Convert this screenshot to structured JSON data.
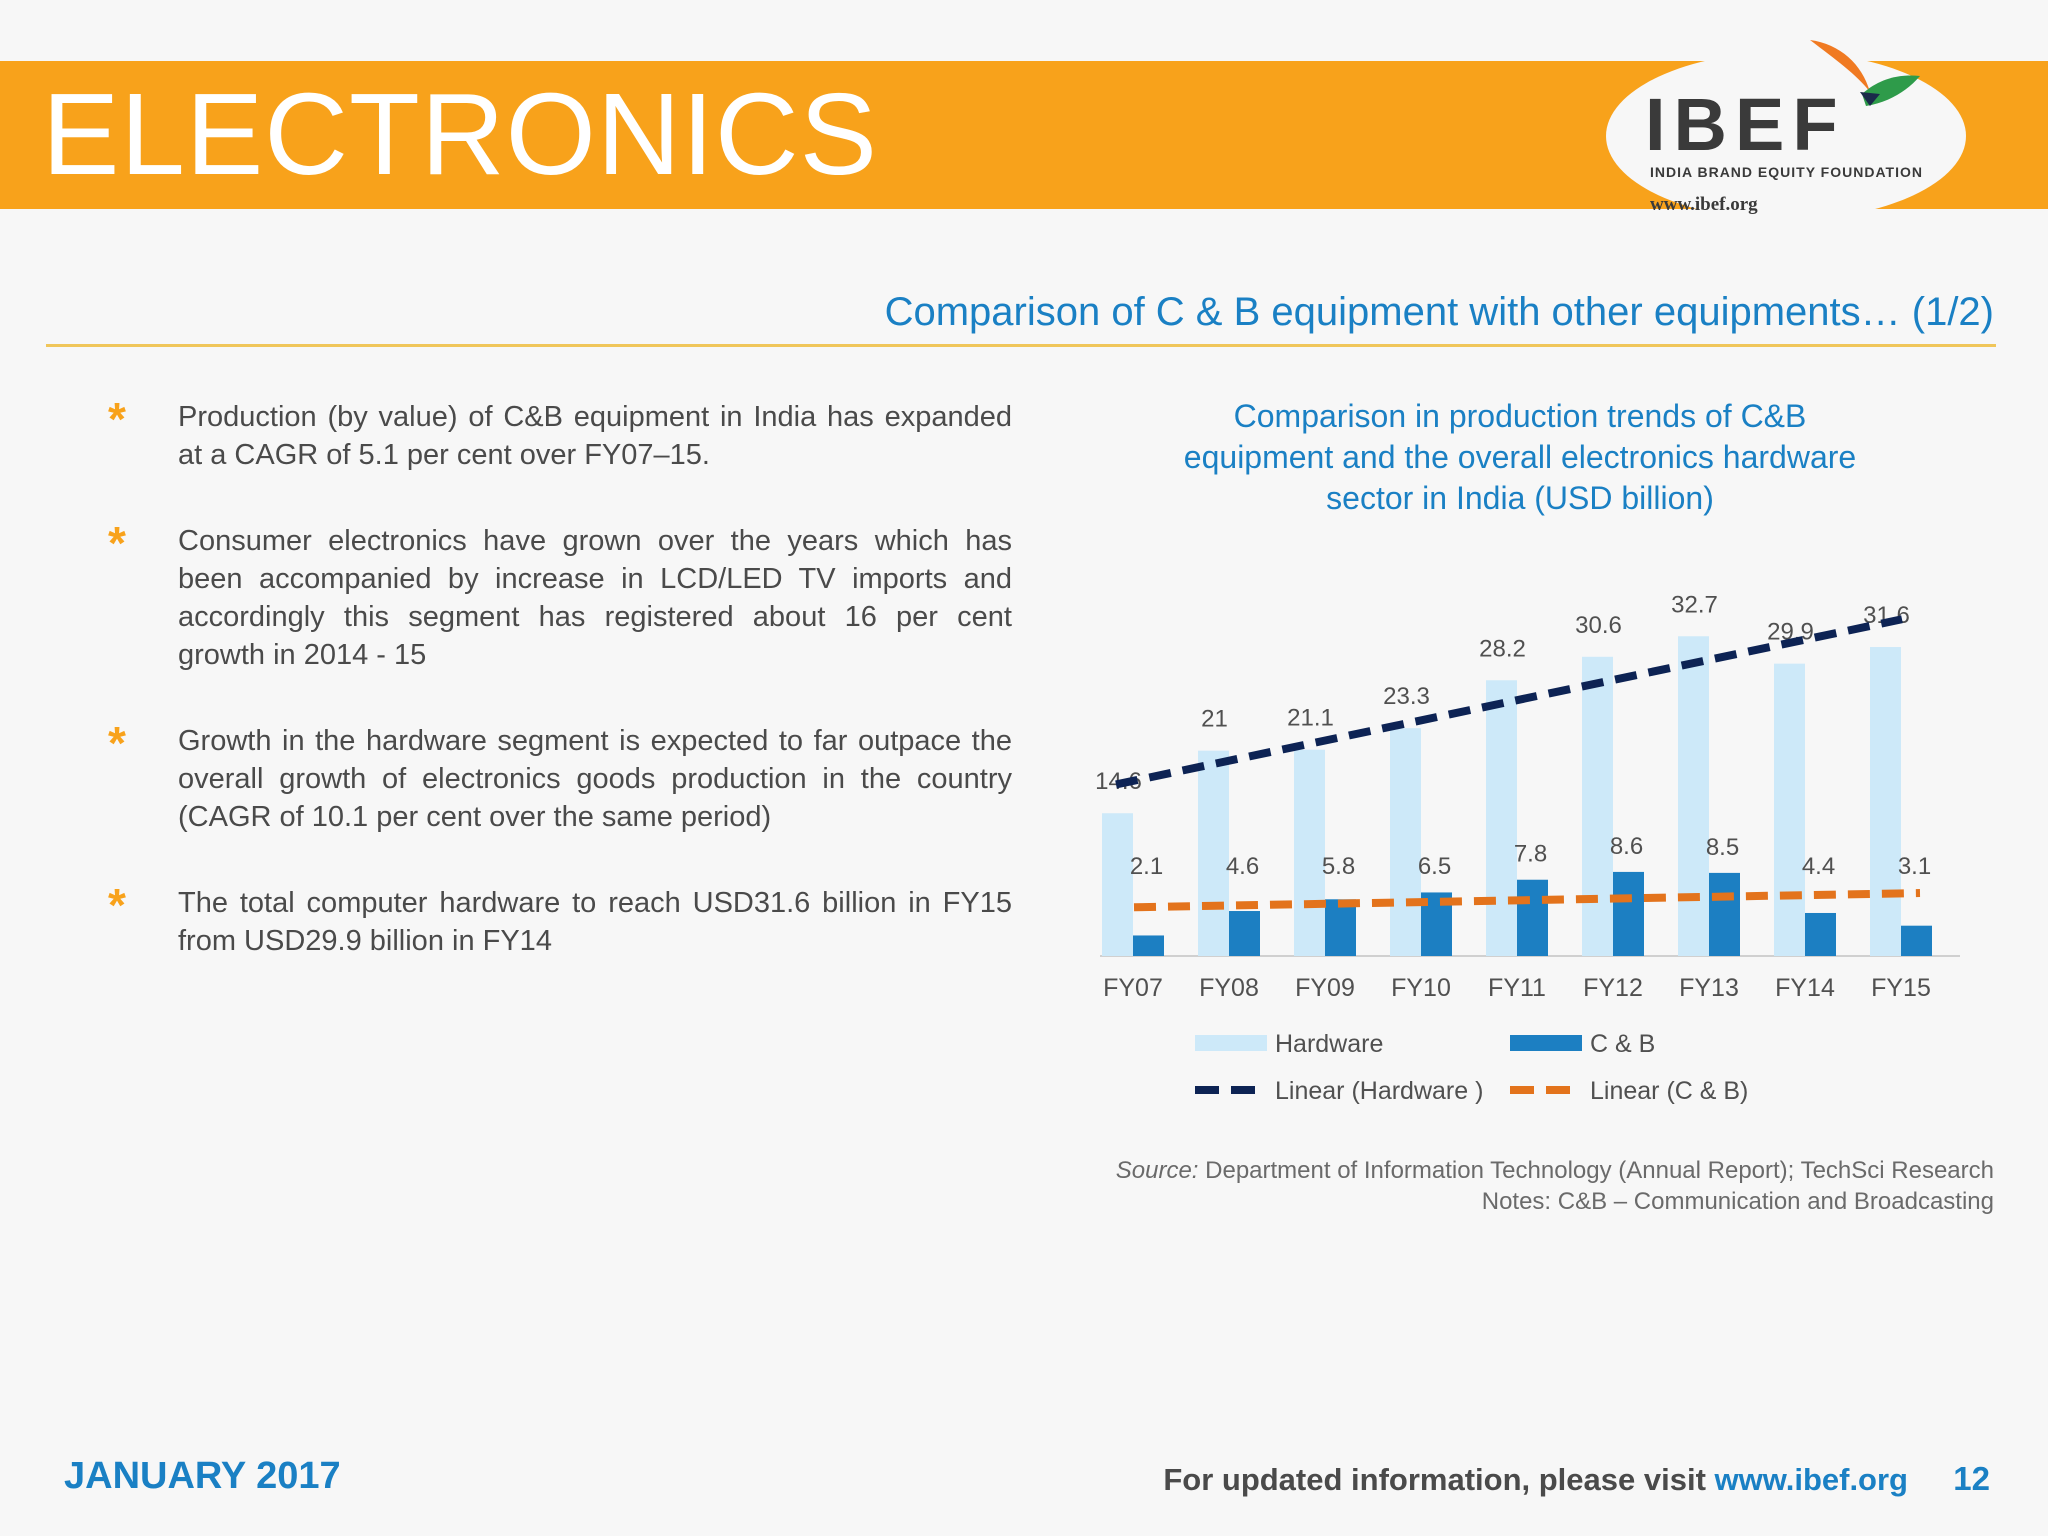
{
  "header": {
    "title": "ELECTRONICS",
    "logo_text": "IBEF",
    "logo_sub": "INDIA BRAND EQUITY FOUNDATION",
    "logo_url": "www.ibef.org"
  },
  "section_title": "Comparison of C & B equipment with other equipments… (1/2)",
  "bullets": [
    "Production (by value) of C&B equipment in India has expanded at a CAGR of 5.1 per cent over FY07–15.",
    "Consumer electronics have grown over the years which has been accompanied by increase in LCD/LED TV imports and accordingly this segment has registered about 16 per cent growth in 2014 - 15",
    "Growth in the hardware segment is expected to far outpace the overall growth of electronics goods production in the country (CAGR of 10.1 per cent over the same period)",
    "The total computer hardware to reach USD31.6 billion in FY15 from USD29.9 billion in FY14"
  ],
  "chart_data": {
    "type": "bar",
    "title_lines": [
      "Comparison in production trends of C&B",
      "equipment and the overall electronics hardware",
      "sector in India (USD billion)"
    ],
    "categories": [
      "FY07",
      "FY08",
      "FY09",
      "FY10",
      "FY11",
      "FY12",
      "FY13",
      "FY14",
      "FY15"
    ],
    "series": [
      {
        "name": "Hardware",
        "values": [
          14.6,
          21,
          21.1,
          23.3,
          28.2,
          30.6,
          32.7,
          29.9,
          31.6
        ],
        "color": "#cde9f9"
      },
      {
        "name": "C & B",
        "values": [
          2.1,
          4.6,
          5.8,
          6.5,
          7.8,
          8.6,
          8.5,
          4.4,
          3.1
        ],
        "color": "#1c7fc2"
      }
    ],
    "trendlines": [
      {
        "name": "Linear (Hardware )",
        "of": "Hardware",
        "color": "#0d2354"
      },
      {
        "name": "Linear (C & B)",
        "of": "C & B",
        "color": "#e3731c"
      }
    ],
    "ylim": [
      0,
      36
    ],
    "grid": false,
    "legend": "bottom"
  },
  "source": {
    "label": "Source:",
    "text": " Department of Information Technology (Annual Report); TechSci Research",
    "notes": "Notes: C&B – Communication and Broadcasting"
  },
  "footer": {
    "date": "JANUARY 2017",
    "visit_text": "For updated information, please visit ",
    "visit_url": "www.ibef.org",
    "page": "12"
  },
  "colors": {
    "orange": "#f8a21b",
    "blue": "#1a80c4"
  }
}
